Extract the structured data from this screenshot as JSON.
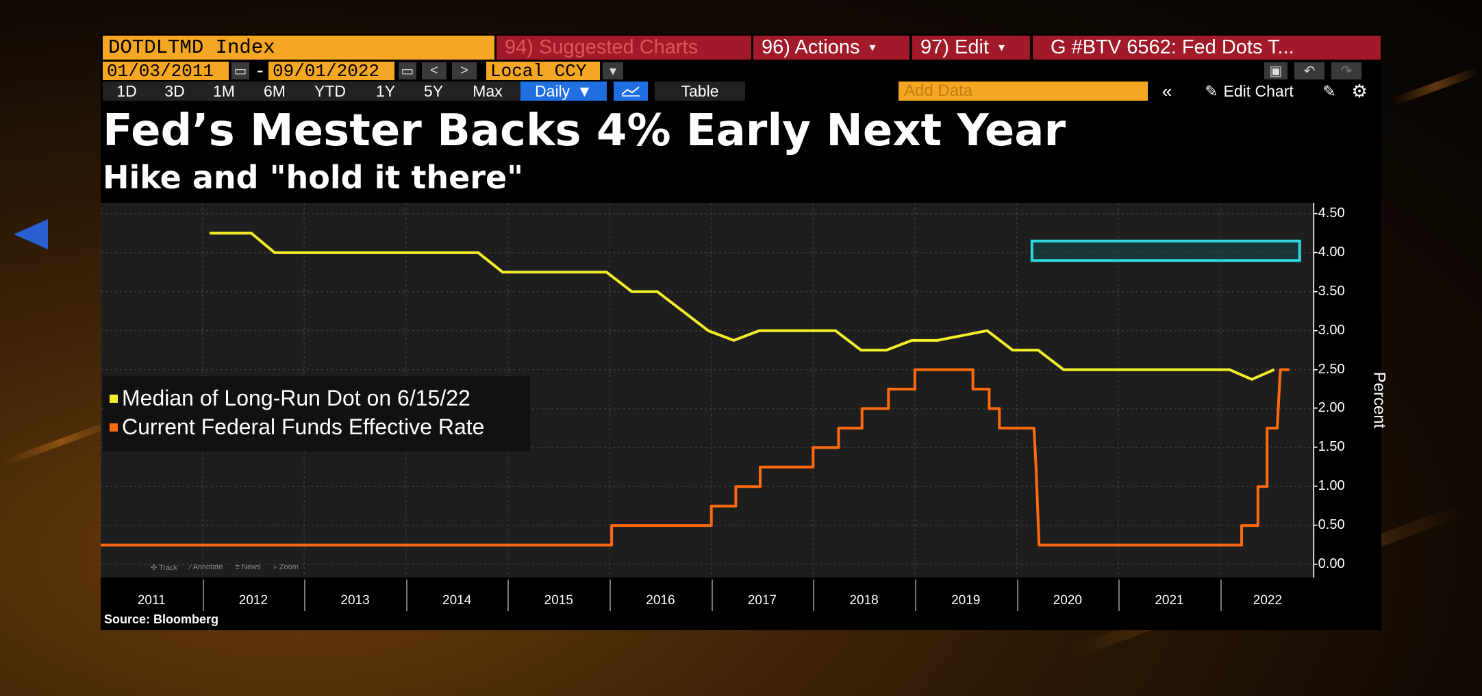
{
  "toolbar": {
    "ticker": "DOTDLTMD Index",
    "suggested_charts": "94) Suggested Charts",
    "actions": "96) Actions",
    "edit": "97) Edit",
    "chart_name": "G #BTV 6562: Fed Dots T...",
    "start_date": "01/03/2011",
    "end_date": "09/01/2022",
    "date_separator": "-",
    "currency": "Local CCY",
    "periods": [
      "1D",
      "3D",
      "1M",
      "6M",
      "YTD",
      "1Y",
      "5Y",
      "Max"
    ],
    "frequency": "Daily",
    "table": "Table",
    "add_data_placeholder": "Add Data",
    "edit_chart": "Edit Chart"
  },
  "headline": "Fed’s Mester Backs 4% Early Next Year",
  "subheadline": "Hike and \"hold it there\"",
  "source": "Source: Bloomberg",
  "chart_tools": [
    "Track",
    "Annotate",
    "News",
    "Zoom"
  ],
  "colors": {
    "yellow_series": "#f2ef2a",
    "orange_series": "#ff6a0e",
    "highlight_box": "#2ed8e0",
    "toolbar_orange": "#f5a623",
    "toolbar_red": "#a11a2a",
    "daily_blue": "#1f6fe0"
  },
  "chart_data": {
    "type": "line",
    "ylabel": "Percent",
    "ylim": [
      0,
      4.5
    ],
    "yticks": [
      "4.50",
      "4.00",
      "3.50",
      "3.00",
      "2.50",
      "2.00",
      "1.50",
      "1.00",
      "0.50",
      "0.00"
    ],
    "xlim": [
      2011.0,
      2022.93
    ],
    "x_tick_labels": [
      "2011",
      "2012",
      "2013",
      "2014",
      "2015",
      "2016",
      "2017",
      "2018",
      "2019",
      "2020",
      "2021",
      "2022"
    ],
    "grid": true,
    "legend_position": "left",
    "series": [
      {
        "name": "Median of Long-Run Dot on 6/15/22",
        "color": "yellow",
        "points": [
          [
            2012.07,
            4.25
          ],
          [
            2012.48,
            4.25
          ],
          [
            2012.71,
            4.0
          ],
          [
            2014.71,
            4.0
          ],
          [
            2014.95,
            3.75
          ],
          [
            2015.97,
            3.75
          ],
          [
            2016.22,
            3.5
          ],
          [
            2016.47,
            3.5
          ],
          [
            2016.97,
            3.0
          ],
          [
            2017.22,
            2.875
          ],
          [
            2017.47,
            3.0
          ],
          [
            2018.22,
            3.0
          ],
          [
            2018.47,
            2.75
          ],
          [
            2018.72,
            2.75
          ],
          [
            2018.97,
            2.875
          ],
          [
            2019.22,
            2.875
          ],
          [
            2019.71,
            3.0
          ],
          [
            2019.96,
            2.75
          ],
          [
            2020.21,
            2.75
          ],
          [
            2020.46,
            2.5
          ],
          [
            2022.09,
            2.5
          ],
          [
            2022.31,
            2.375
          ],
          [
            2022.53,
            2.5
          ]
        ]
      },
      {
        "name": "Current Federal Funds Effective Rate",
        "color": "orange",
        "points": [
          [
            2011.0,
            0.25
          ],
          [
            2016.02,
            0.25
          ],
          [
            2016.02,
            0.5
          ],
          [
            2017.0,
            0.5
          ],
          [
            2017.0,
            0.75
          ],
          [
            2017.24,
            0.75
          ],
          [
            2017.24,
            1.0
          ],
          [
            2017.48,
            1.0
          ],
          [
            2017.48,
            1.25
          ],
          [
            2018.0,
            1.25
          ],
          [
            2018.0,
            1.5
          ],
          [
            2018.25,
            1.5
          ],
          [
            2018.25,
            1.75
          ],
          [
            2018.48,
            1.75
          ],
          [
            2018.48,
            2.0
          ],
          [
            2018.74,
            2.0
          ],
          [
            2018.74,
            2.25
          ],
          [
            2019.0,
            2.25
          ],
          [
            2019.0,
            2.5
          ],
          [
            2019.57,
            2.5
          ],
          [
            2019.57,
            2.25
          ],
          [
            2019.73,
            2.25
          ],
          [
            2019.73,
            2.0
          ],
          [
            2019.83,
            2.0
          ],
          [
            2019.83,
            1.75
          ],
          [
            2020.17,
            1.75
          ],
          [
            2020.19,
            1.25
          ],
          [
            2020.22,
            0.25
          ],
          [
            2022.21,
            0.25
          ],
          [
            2022.21,
            0.5
          ],
          [
            2022.37,
            0.5
          ],
          [
            2022.37,
            1.0
          ],
          [
            2022.46,
            1.0
          ],
          [
            2022.46,
            1.75
          ],
          [
            2022.56,
            1.75
          ],
          [
            2022.59,
            2.5
          ],
          [
            2022.68,
            2.5
          ]
        ]
      }
    ],
    "highlight_box": {
      "x": [
        2020.15,
        2022.78
      ],
      "y": [
        3.9,
        4.15
      ]
    }
  }
}
